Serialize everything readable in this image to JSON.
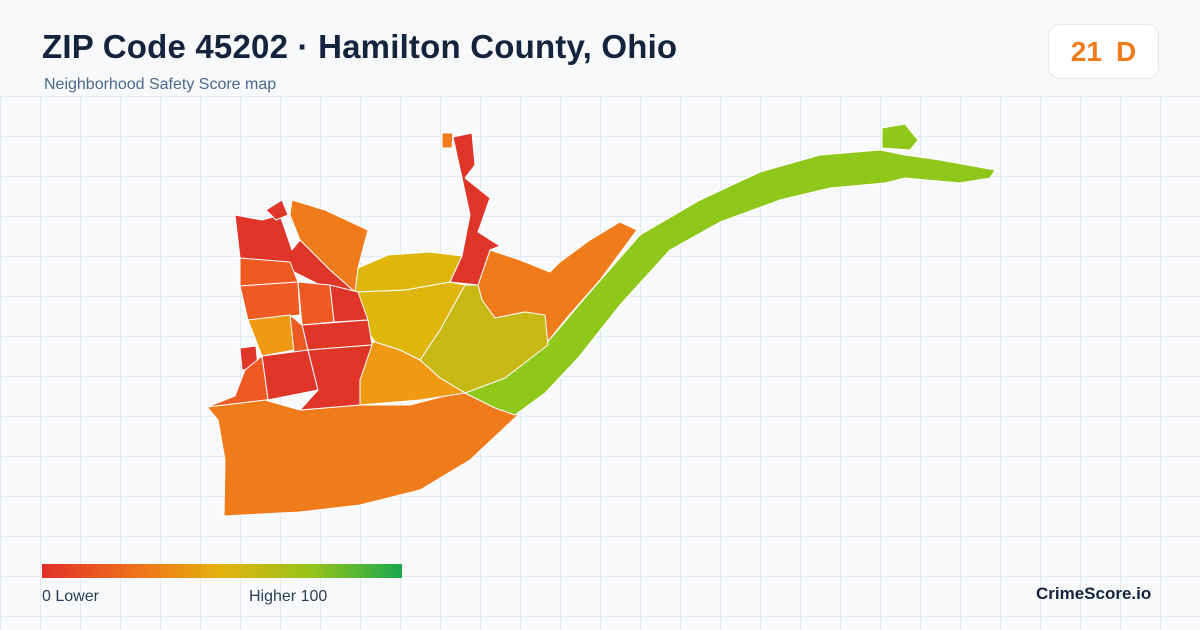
{
  "header": {
    "title": "ZIP Code 45202 · Hamilton County, Ohio",
    "subtitle": "Neighborhood Safety Score map"
  },
  "score": {
    "value": "21",
    "grade": "D",
    "color": "#f07b1a"
  },
  "legend": {
    "min_label": "0  Lower",
    "max_label": "Higher  100",
    "min": 0,
    "max": 100,
    "colors": [
      "#e1302a",
      "#f07b1a",
      "#e3b20c",
      "#95c41a",
      "#1aa84e"
    ]
  },
  "brand": "CrimeScore.io",
  "map_colors": {
    "lowest": "#e0362a",
    "low": "#ee5a22",
    "orange": "#f07b1a",
    "amber": "#f09a14",
    "yellow": "#dfb60c",
    "olive": "#c8b814",
    "lime": "#8fc71a"
  }
}
